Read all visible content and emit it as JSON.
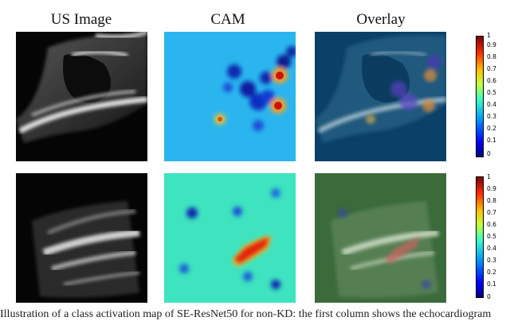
{
  "top_caption": "",
  "columns": {
    "us_image": "US Image",
    "cam": "CAM",
    "overlay": "Overlay"
  },
  "colorbar_top": {
    "ticks": [
      "0.9",
      "0.8",
      "0.7",
      "0.6",
      "0.5",
      "0.4",
      "0.3",
      "0.2",
      "0.1",
      "0"
    ],
    "top_value": "1"
  },
  "colorbar_bottom": {
    "ticks": [
      "1",
      "0.9",
      "0.8",
      "0.7",
      "0.6",
      "0.5",
      "0.4",
      "0.3",
      "0.2",
      "0.1",
      "0"
    ]
  },
  "caption": "Illustration of a class activation map of SE-ResNet50 for non-KD: the first column shows the echocardiogram"
}
